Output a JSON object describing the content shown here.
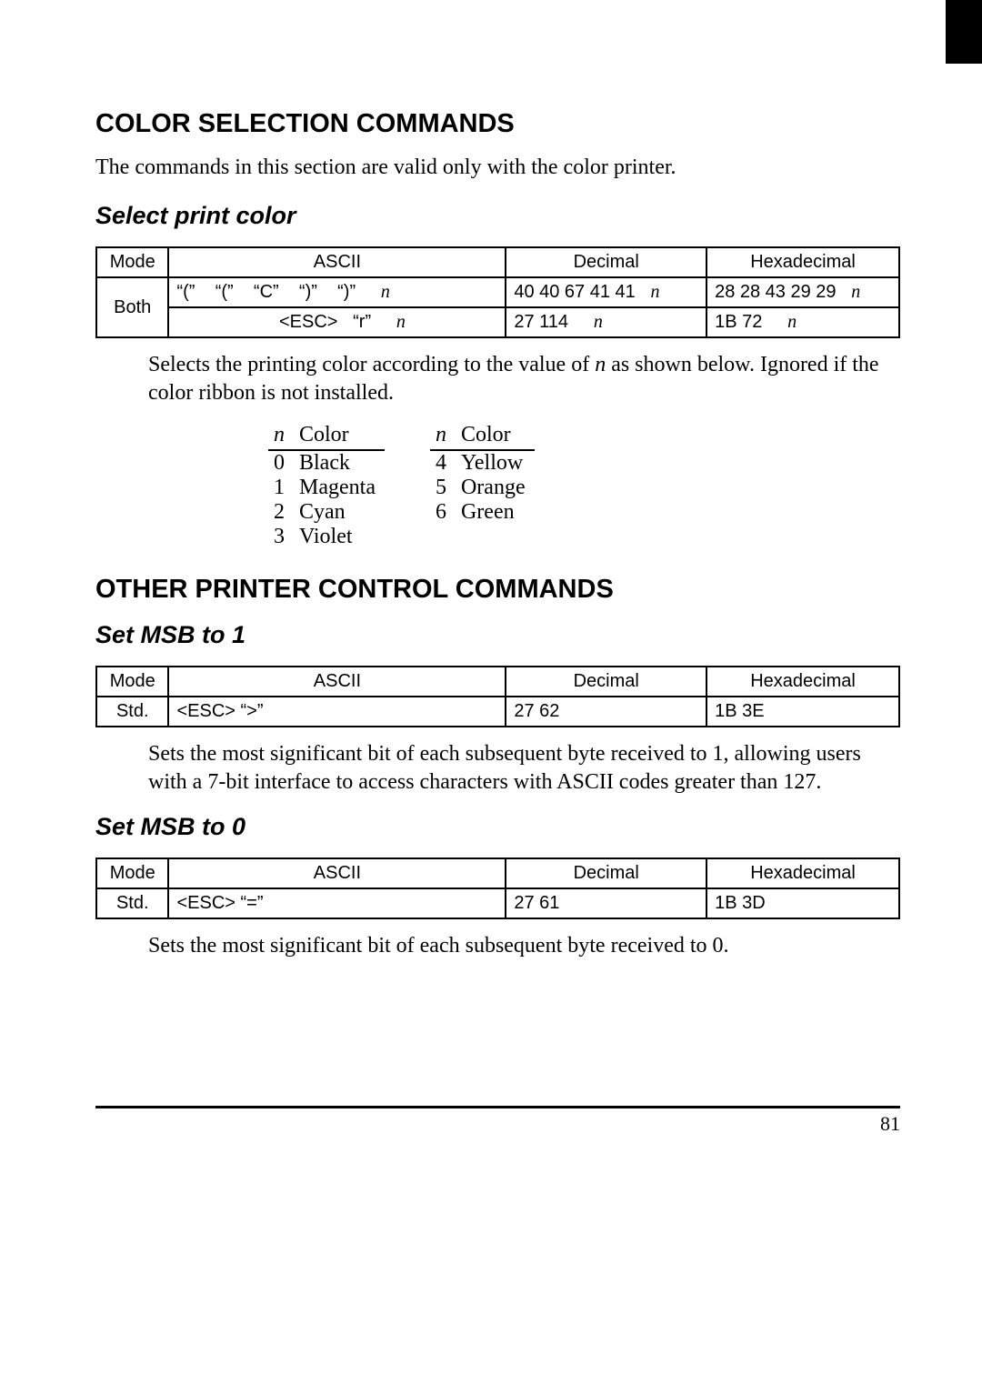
{
  "page_number": "81",
  "section1": {
    "heading": "COLOR SELECTION COMMANDS",
    "intro": "The commands in this section are valid only with the color printer.",
    "sub": "Select print color",
    "table": {
      "headers": {
        "mode": "Mode",
        "ascii": "ASCII",
        "dec": "Decimal",
        "hex": "Hexadecimal"
      },
      "mode": "Both",
      "rows": [
        {
          "ascii_parts": [
            "“(”",
            "“(”",
            "“C”",
            "“)”",
            "“)”"
          ],
          "ascii_var": "n",
          "dec": "40  40  67  41  41",
          "dec_var": "n",
          "hex": "28  28  43  29  29",
          "hex_var": "n"
        },
        {
          "ascii_parts": [
            "<ESC>",
            "“r”"
          ],
          "ascii_var": "n",
          "dec": "27  114",
          "dec_var": "n",
          "hex": "1B   72",
          "hex_var": "n"
        }
      ]
    },
    "desc_pre": "Selects the printing color according to the value of ",
    "desc_var": "n",
    "desc_post": " as shown below. Ignored if the color ribbon is not installed.",
    "colors_header1": "n",
    "colors_header2": "Color",
    "left": [
      {
        "n": "0",
        "c": "Black"
      },
      {
        "n": "1",
        "c": "Magenta"
      },
      {
        "n": "2",
        "c": "Cyan"
      },
      {
        "n": "3",
        "c": "Violet"
      }
    ],
    "right": [
      {
        "n": "4",
        "c": "Yellow"
      },
      {
        "n": "5",
        "c": "Orange"
      },
      {
        "n": "6",
        "c": "Green"
      }
    ]
  },
  "section2": {
    "heading": "OTHER PRINTER CONTROL COMMANDS",
    "sub1": "Set MSB to 1",
    "table1": {
      "headers": {
        "mode": "Mode",
        "ascii": "ASCII",
        "dec": "Decimal",
        "hex": "Hexadecimal"
      },
      "row": {
        "mode": "Std.",
        "ascii": "<ESC>   “>”",
        "dec": "27    62",
        "hex": "1B   3E"
      }
    },
    "desc1": "Sets the most significant bit of each subsequent byte received to 1, allowing users with a 7-bit interface to access characters with ASCII codes greater than 127.",
    "sub2": "Set MSB to 0",
    "table2": {
      "headers": {
        "mode": "Mode",
        "ascii": "ASCII",
        "dec": "Decimal",
        "hex": "Hexadecimal"
      },
      "row": {
        "mode": "Std.",
        "ascii": "<ESC>   “=”",
        "dec": "27    61",
        "hex": "1B   3D"
      }
    },
    "desc2": "Sets the most significant bit of each subsequent byte received to 0."
  }
}
